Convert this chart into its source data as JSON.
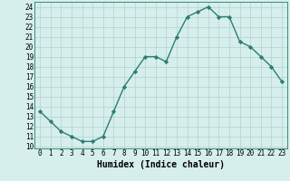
{
  "x": [
    0,
    1,
    2,
    3,
    4,
    5,
    6,
    7,
    8,
    9,
    10,
    11,
    12,
    13,
    14,
    15,
    16,
    17,
    18,
    19,
    20,
    21,
    22,
    23
  ],
  "y": [
    13.5,
    12.5,
    11.5,
    11.0,
    10.5,
    10.5,
    11.0,
    13.5,
    16.0,
    17.5,
    19.0,
    19.0,
    18.5,
    21.0,
    23.0,
    23.5,
    24.0,
    23.0,
    23.0,
    20.5,
    20.0,
    19.0,
    18.0,
    16.5
  ],
  "xlabel": "Humidex (Indice chaleur)",
  "xlim": [
    -0.5,
    23.5
  ],
  "ylim": [
    9.8,
    24.5
  ],
  "yticks": [
    10,
    11,
    12,
    13,
    14,
    15,
    16,
    17,
    18,
    19,
    20,
    21,
    22,
    23,
    24
  ],
  "xticks": [
    0,
    1,
    2,
    3,
    4,
    5,
    6,
    7,
    8,
    9,
    10,
    11,
    12,
    13,
    14,
    15,
    16,
    17,
    18,
    19,
    20,
    21,
    22,
    23
  ],
  "xtick_labels": [
    "0",
    "1",
    "2",
    "3",
    "4",
    "5",
    "6",
    "7",
    "8",
    "9",
    "10",
    "11",
    "12",
    "13",
    "14",
    "15",
    "16",
    "17",
    "18",
    "19",
    "20",
    "21",
    "22",
    "23"
  ],
  "line_color": "#2d7d74",
  "bg_color": "#d6eeec",
  "grid_color": "#b0d4d0",
  "marker": "D",
  "markersize": 2.2,
  "linewidth": 1.0,
  "tick_fontsize": 5.5,
  "xlabel_fontsize": 7.0
}
